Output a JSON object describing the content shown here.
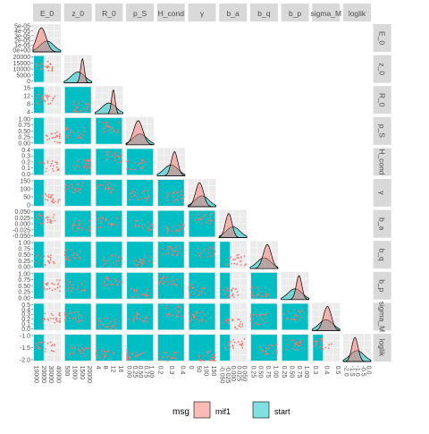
{
  "colors": {
    "mif1": "#F8766D",
    "start": "#00BFC4",
    "panel_bg": "#EBEBEB",
    "strip_bg": "#D9D9D9",
    "text": "#4D4D4D",
    "axis_text": "#1A1A1A"
  },
  "legend": {
    "title": "msg",
    "items": [
      {
        "key": "mif1",
        "label": "mif1"
      },
      {
        "key": "start",
        "label": "start"
      }
    ]
  },
  "chart_data": {
    "type": "scatter",
    "subtype": "pairs-matrix",
    "variables": [
      "E_0",
      "z_0",
      "R_0",
      "p_S",
      "H_cond",
      "γ",
      "b_a",
      "b_q",
      "b_p",
      "sigma_M",
      "loglik"
    ],
    "column_strips": [
      "E_0",
      "z_0",
      "R_0",
      "p_S",
      "H_cond",
      "γ",
      "b_a",
      "b_q",
      "b_p",
      "sigma_M",
      "loglik"
    ],
    "row_strips": [
      "E_0",
      "z_0",
      "R_0",
      "p_S",
      "H_cond",
      "γ",
      "b_a",
      "b_q",
      "b_p",
      "sigma_M",
      "loglik"
    ],
    "series": [
      {
        "name": "mif1",
        "geom": "points + density"
      },
      {
        "name": "start",
        "geom": "tiles + density"
      }
    ],
    "row_tick_labels": [
      [
        "5e-05",
        "4e-05",
        "3e-05",
        "2e-05",
        "1e-05",
        "0e+00"
      ],
      [
        "20000",
        "15000",
        "10000",
        "5000",
        "0"
      ],
      [
        "16",
        "12",
        "8",
        "4"
      ],
      [
        "1.00",
        "0.75",
        "0.50",
        "0.25",
        "0.00"
      ],
      [
        "0.4",
        "0.3",
        "0.2",
        "0.1",
        "0.0"
      ],
      [
        "150",
        "100",
        "50",
        "0"
      ],
      [
        "0.050",
        "0.025",
        "0.000",
        "-0.025",
        "-0.050"
      ],
      [
        "1.00",
        "0.75",
        "0.50",
        "0.25",
        "0.00"
      ],
      [
        "1.00",
        "0.75",
        "0.50",
        "0.25",
        "0.00"
      ],
      [
        "0.5",
        "0.4",
        "0.3",
        "0.2",
        "0.1",
        "0.0"
      ],
      [
        "-1.0",
        "-1.5",
        "-2.0"
      ]
    ],
    "col_tick_labels": [
      [
        "10000",
        "20000",
        "30000",
        "40000"
      ],
      [
        "500",
        "1000",
        "1500",
        "20000"
      ],
      [
        "4",
        "8",
        "12",
        "16"
      ],
      [
        "0.00",
        "0.25",
        "0.50",
        "0.75",
        "1.00"
      ],
      [
        "0.2",
        "0.3",
        "0.4"
      ],
      [
        "0",
        "50",
        "100",
        "150"
      ],
      [
        "-0.050",
        "-0.025",
        "0.000",
        "0.025",
        "0.050"
      ],
      [
        "0.25",
        "0.50",
        "0.75",
        "1.00"
      ],
      [
        "0.25",
        "0.50",
        "0.75",
        "1.00"
      ],
      [
        "0.3",
        "0.4",
        "0.5"
      ],
      [
        "-2.0",
        "-1.5",
        "-1.0",
        "-0.5",
        "0.0"
      ]
    ]
  }
}
